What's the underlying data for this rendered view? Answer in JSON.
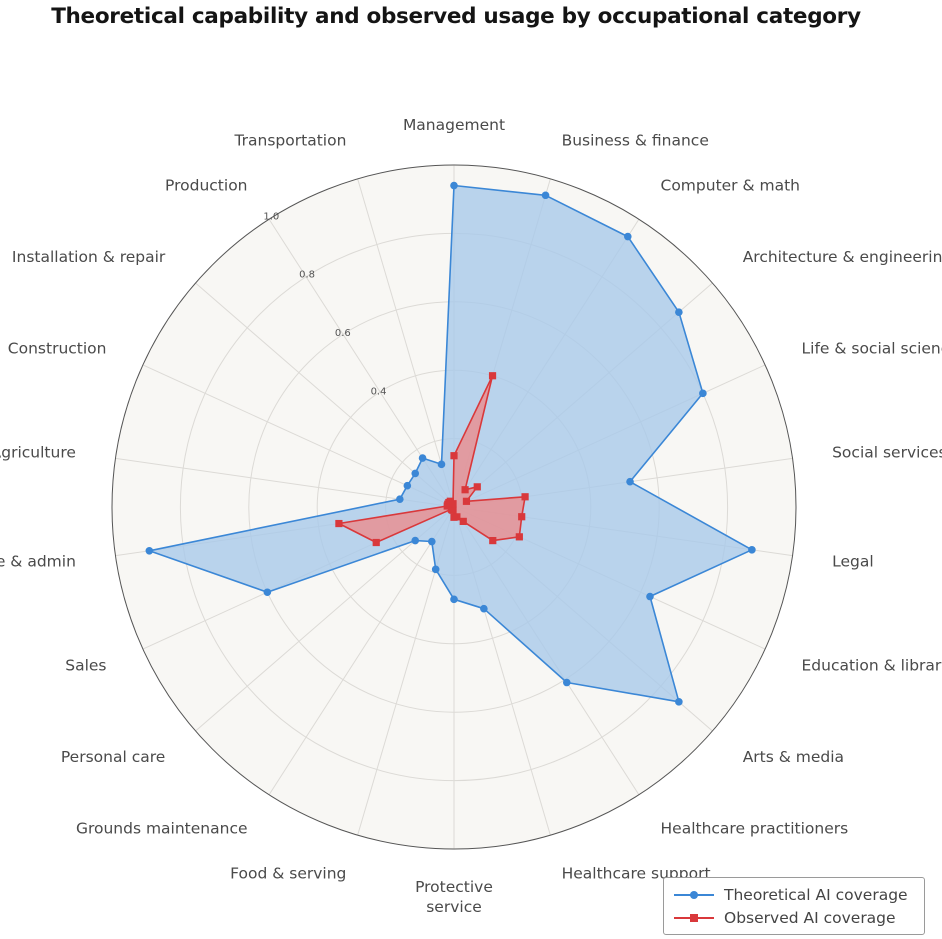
{
  "title": "Theoretical capability and observed usage by occupational category",
  "colors": {
    "theoretical": "#3b87d6",
    "theoretical_fill": "#a9c9ea",
    "observed": "#d9383b",
    "observed_fill": "#eb8d8f",
    "plot_bg": "#f8f7f4",
    "grid": "#dcdad6",
    "outer_ring": "#555555"
  },
  "legend": {
    "theoretical_label": "Theoretical AI coverage",
    "observed_label": "Observed AI coverage"
  },
  "chart_data": {
    "type": "radar",
    "title": "Theoretical capability and observed usage by occupational category",
    "categories": [
      "Management",
      "Business & finance",
      "Computer & math",
      "Architecture & engineering",
      "Life & social sciences",
      "Social services",
      "Legal",
      "Education & library",
      "Arts & media",
      "Healthcare practitioners",
      "Healthcare support",
      "Protective service",
      "Food & serving",
      "Grounds maintenance",
      "Personal care",
      "Sales",
      "Office & admin",
      "Agriculture",
      "Construction",
      "Installation & repair",
      "Production",
      "Transportation"
    ],
    "radial_ticks": [
      "0.4",
      "0.6",
      "0.8",
      "1.0"
    ],
    "rlim": [
      0,
      1.0
    ],
    "grid": true,
    "legend_position": "bottom-right",
    "series": [
      {
        "name": "Theoretical AI coverage",
        "marker": "circle",
        "values": [
          0.94,
          0.95,
          0.94,
          0.87,
          0.8,
          0.52,
          0.88,
          0.63,
          0.87,
          0.61,
          0.31,
          0.27,
          0.19,
          0.12,
          0.15,
          0.6,
          0.9,
          0.16,
          0.15,
          0.15,
          0.17,
          0.13
        ]
      },
      {
        "name": "Observed AI coverage",
        "marker": "square",
        "values": [
          0.15,
          0.4,
          0.06,
          0.09,
          0.04,
          0.21,
          0.2,
          0.21,
          0.15,
          0.05,
          0.03,
          0.03,
          0.01,
          0.01,
          0.01,
          0.25,
          0.34,
          0.02,
          0.02,
          0.02,
          0.02,
          0.01
        ]
      }
    ]
  }
}
